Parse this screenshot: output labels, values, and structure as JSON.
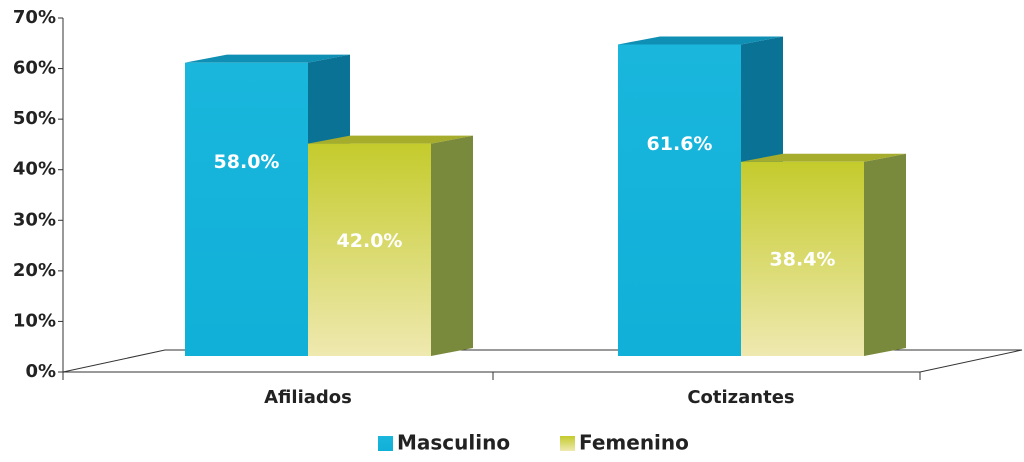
{
  "chart_data": {
    "type": "bar3d",
    "categories": [
      "Afiliados",
      "Cotizantes"
    ],
    "series": [
      {
        "name": "Masculino",
        "color": "#1ab6dc",
        "values": [
          58.0,
          61.6
        ],
        "value_labels": [
          "58.0%",
          "61.6%"
        ]
      },
      {
        "name": "Femenino",
        "color": "#c9cf3a",
        "values": [
          42.0,
          38.4
        ],
        "value_labels": [
          "42.0%",
          "38.4%"
        ]
      }
    ],
    "ylim": [
      0,
      70
    ],
    "yticks": [
      {
        "value": 0,
        "label": "0%"
      },
      {
        "value": 10,
        "label": "10%"
      },
      {
        "value": 20,
        "label": "20%"
      },
      {
        "value": 30,
        "label": "30%"
      },
      {
        "value": 40,
        "label": "40%"
      },
      {
        "value": 50,
        "label": "50%"
      },
      {
        "value": 60,
        "label": "60%"
      },
      {
        "value": 70,
        "label": "70%"
      }
    ],
    "legend": "bottom"
  }
}
